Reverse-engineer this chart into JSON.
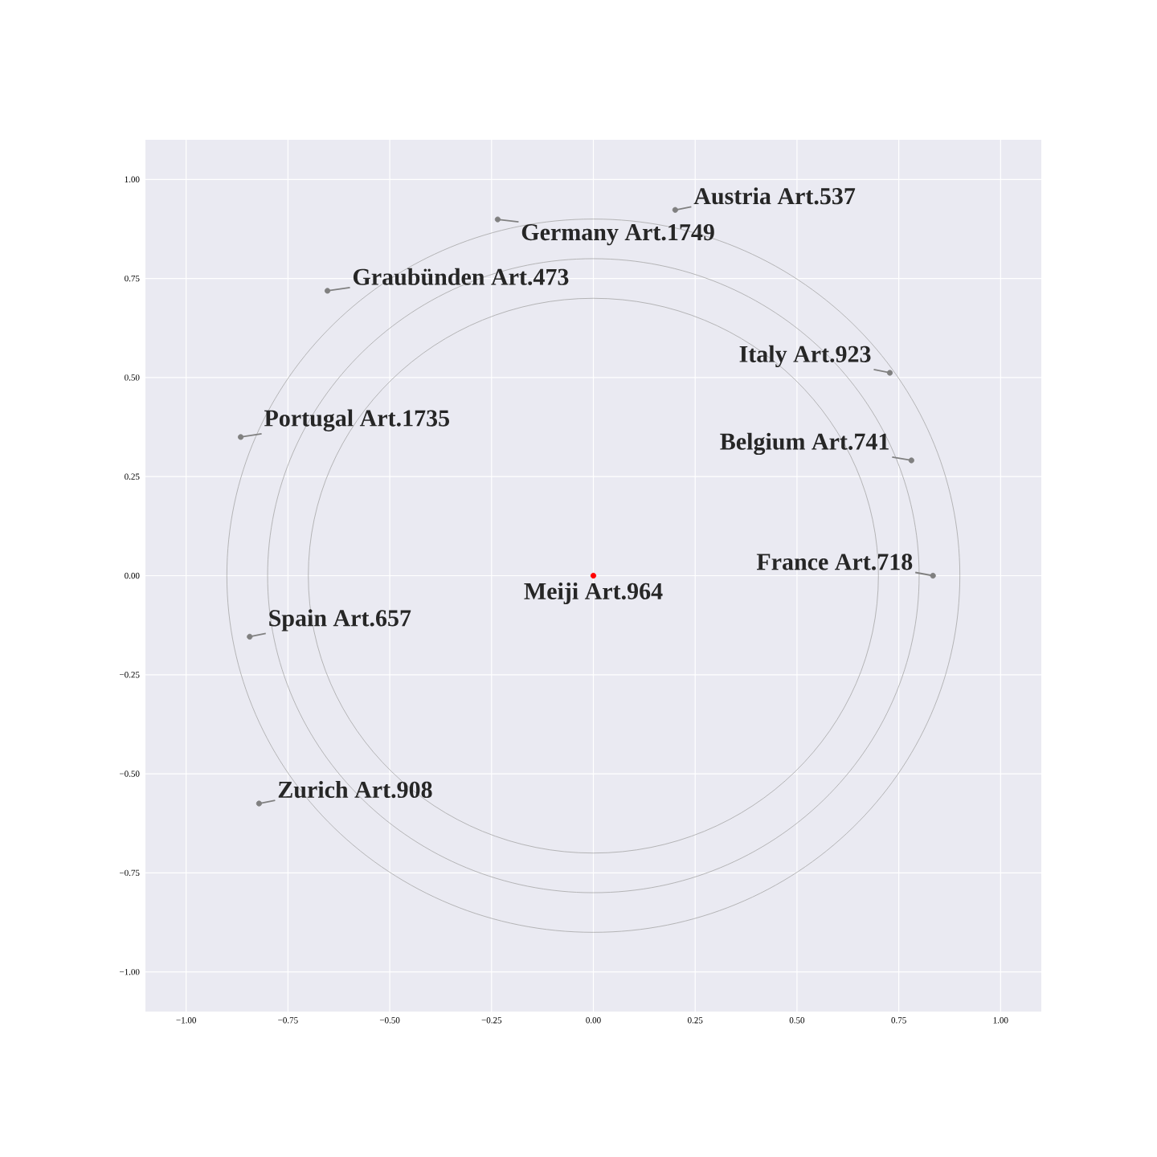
{
  "chart_data": {
    "type": "scatter",
    "marker": "circle",
    "grid": true,
    "xlim": [
      -1.1,
      1.1
    ],
    "ylim": [
      -1.1,
      1.1
    ],
    "xticks": [
      {
        "value": -1,
        "label": "−1.00"
      },
      {
        "value": -0.75,
        "label": "−0.75"
      },
      {
        "value": -0.5,
        "label": "−0.50"
      },
      {
        "value": -0.25,
        "label": "−0.25"
      },
      {
        "value": 0,
        "label": "0.00"
      },
      {
        "value": 0.25,
        "label": "0.25"
      },
      {
        "value": 0.5,
        "label": "0.50"
      },
      {
        "value": 0.75,
        "label": "0.75"
      },
      {
        "value": 1,
        "label": "1.00"
      }
    ],
    "yticks": [
      {
        "value": -1,
        "label": "−1.00"
      },
      {
        "value": -0.75,
        "label": "−0.75"
      },
      {
        "value": -0.5,
        "label": "−0.50"
      },
      {
        "value": -0.25,
        "label": "−0.25"
      },
      {
        "value": 0,
        "label": "0.00"
      },
      {
        "value": 0.25,
        "label": "0.25"
      },
      {
        "value": 0.5,
        "label": "0.50"
      },
      {
        "value": 0.75,
        "label": "0.75"
      },
      {
        "value": 1,
        "label": "1.00"
      }
    ],
    "series": [
      {
        "color": "#808080",
        "x": [
          0.201,
          -0.235,
          -0.653,
          -0.866,
          -0.844,
          -0.821,
          0.728,
          0.781,
          0.834
        ],
        "values": [
          0.923,
          0.899,
          0.719,
          0.35,
          -0.154,
          -0.575,
          0.512,
          0.291,
          0
        ]
      },
      {
        "color": "#ff0000",
        "x": [
          0
        ],
        "values": [
          0
        ]
      }
    ],
    "annotations": [
      {
        "text": "Austria Art.537",
        "x": 0.201,
        "y": 0.923
      },
      {
        "text": "Germany Art.1749",
        "x": -0.235,
        "y": 0.899
      },
      {
        "text": "Graubünden Art.473",
        "x": -0.653,
        "y": 0.719
      },
      {
        "text": "Portugal Art.1735",
        "x": -0.866,
        "y": 0.35
      },
      {
        "text": "Spain Art.657",
        "x": -0.844,
        "y": -0.154
      },
      {
        "text": "Zurich Art.908",
        "x": -0.821,
        "y": -0.575
      },
      {
        "text": "Italy Art.923",
        "x": 0.728,
        "y": 0.512
      },
      {
        "text": "Belgium Art.741",
        "x": 0.781,
        "y": 0.291
      },
      {
        "text": "France Art.718",
        "x": 0.834,
        "y": 0
      },
      {
        "text": "Meiji Art.964",
        "x": 0,
        "y": 0
      }
    ]
  }
}
